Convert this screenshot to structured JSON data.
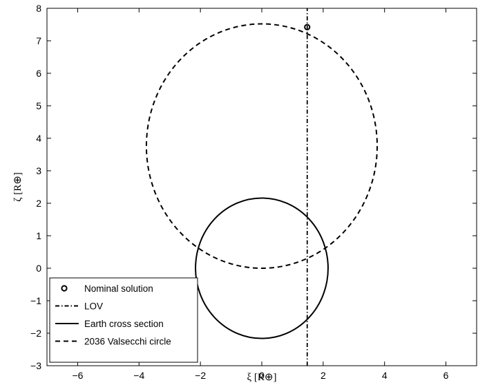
{
  "chart_data": {
    "type": "line",
    "xlabel": "ξ [R⊕]",
    "ylabel": "ζ [R⊕]",
    "xlim": [
      -7,
      7
    ],
    "ylim": [
      -3,
      8
    ],
    "xticks": [
      -6,
      -4,
      -2,
      0,
      2,
      4,
      6
    ],
    "yticks": [
      -3,
      -2,
      -1,
      0,
      1,
      2,
      3,
      4,
      5,
      6,
      7,
      8
    ],
    "xtick_labels": [
      "−6",
      "−4",
      "−2",
      "0",
      "2",
      "4",
      "6"
    ],
    "ytick_labels": [
      "−3",
      "−2",
      "−1",
      "0",
      "1",
      "2",
      "3",
      "4",
      "5",
      "6",
      "7",
      "8"
    ],
    "grid": false,
    "legend_position": "bottom-left",
    "series": [
      {
        "name": "Nominal solution",
        "kind": "point",
        "marker": "circle",
        "x": [
          1.48
        ],
        "y": [
          7.42
        ]
      },
      {
        "name": "LOV",
        "kind": "vertical-line",
        "style": "dash-dot",
        "x": 1.48,
        "y_range": [
          -3,
          8
        ]
      },
      {
        "name": "Earth cross section",
        "kind": "circle",
        "style": "solid",
        "center": [
          0,
          0
        ],
        "radius": 2.16
      },
      {
        "name": "2036 Valsecchi circle",
        "kind": "circle",
        "style": "dashed",
        "center": [
          0,
          3.76
        ],
        "radius": 3.76
      }
    ]
  }
}
